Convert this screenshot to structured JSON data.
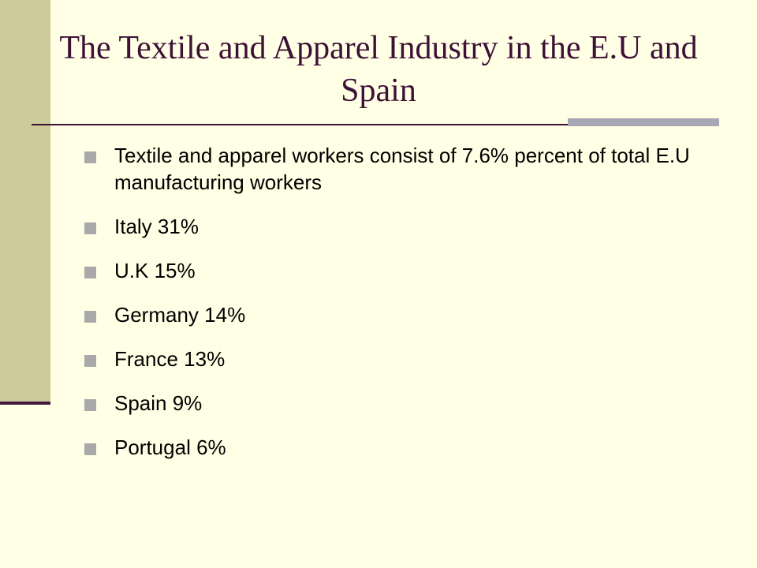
{
  "slide": {
    "title": "The Textile and Apparel Industry in the E.U and Spain",
    "bullets": [
      "Textile and apparel workers consist of 7.6% percent of total E.U manufacturing workers",
      "Italy 31%",
      "U.K 15%",
      "Germany 14%",
      "France 13%",
      "Spain 9%",
      "Portugal 6%"
    ]
  },
  "colors": {
    "background": "#ffffe5",
    "band": "#cdcb99",
    "title": "#3d1035",
    "bullet_marker": "#a9a9a9",
    "rule_accent": "#a7a7b5"
  },
  "icons": {
    "bullet": "square-bullet-icon"
  }
}
